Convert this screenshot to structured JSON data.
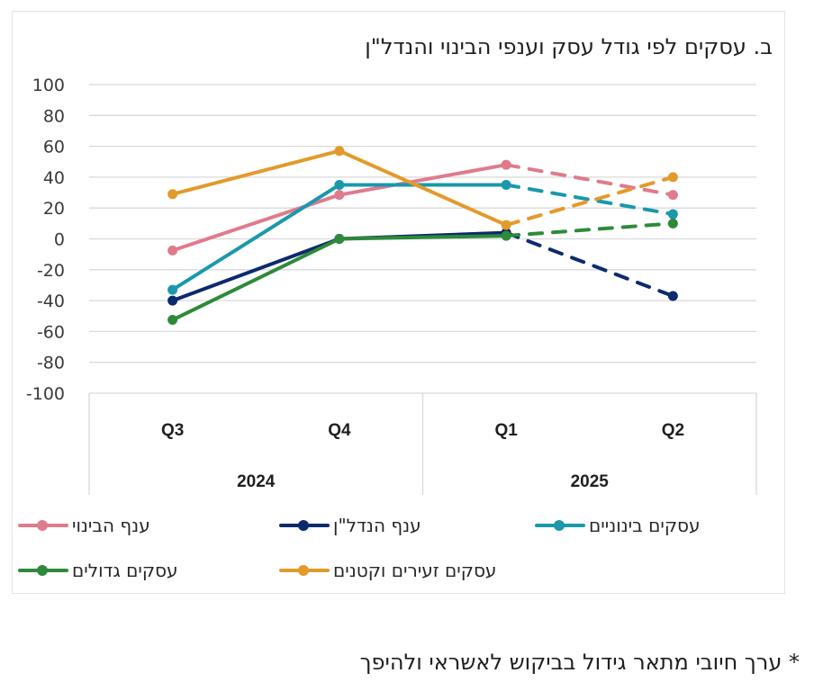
{
  "chart_data": {
    "type": "line",
    "title": "ב. עסקים לפי גודל עסק וענפי הבינוי והנדל\"ן",
    "xlabel": "",
    "ylabel": "",
    "ylim": [
      -100,
      100
    ],
    "yticks": [
      "100",
      "80",
      "60",
      "40",
      "20",
      "0",
      "-20",
      "-40",
      "-60",
      "-80",
      "-100"
    ],
    "ytick_values": [
      100,
      80,
      60,
      40,
      20,
      0,
      -20,
      -40,
      -60,
      -80,
      -100
    ],
    "categories": [
      "Q3",
      "Q4",
      "Q1",
      "Q2"
    ],
    "year_groups": [
      {
        "label": "2024",
        "categories": [
          "Q3",
          "Q4"
        ]
      },
      {
        "label": "2025",
        "categories": [
          "Q1",
          "Q2"
        ]
      }
    ],
    "grid": true,
    "forecast_from_index": 2,
    "forecast_style": "dashed",
    "legend_position": "bottom",
    "series": [
      {
        "name": "ענף הבינוי",
        "color": "#e07a8d",
        "values": [
          -7.5,
          28.5,
          48,
          28.5
        ]
      },
      {
        "name": "ענף הנדל\"ן",
        "color": "#0d2a6e",
        "values": [
          -40,
          0,
          4,
          -37
        ]
      },
      {
        "name": "עסקים בינוניים",
        "color": "#1a98ac",
        "values": [
          -33,
          35,
          35,
          16
        ]
      },
      {
        "name": "עסקים גדולים",
        "color": "#2e8a3a",
        "values": [
          -52.5,
          0,
          2,
          10
        ]
      },
      {
        "name": "עסקים זעירים וקטנים",
        "color": "#e39a2a",
        "values": [
          29,
          57,
          9,
          40
        ]
      }
    ]
  },
  "footnote": "* ערך חיובי מתאר גידול בביקוש לאשראי ולהיפך"
}
